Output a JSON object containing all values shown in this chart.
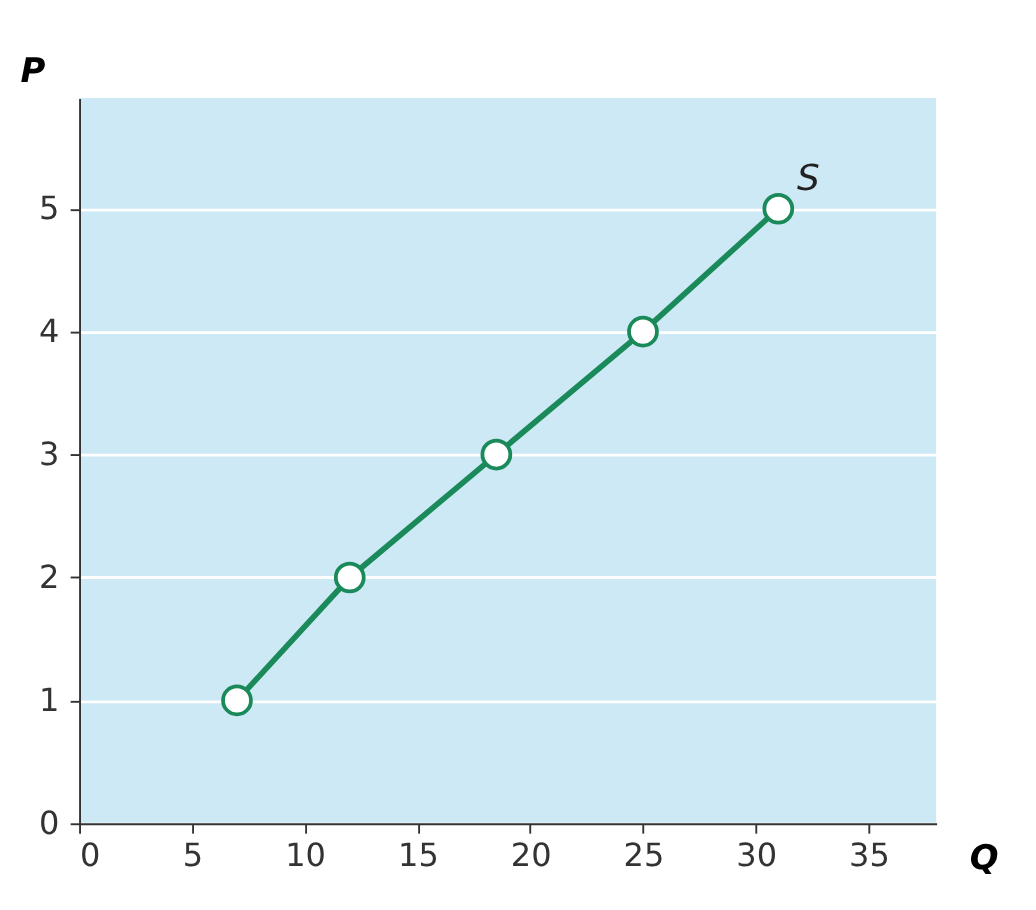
{
  "chart_data": {
    "type": "line",
    "xlabel": "Q",
    "ylabel": "P",
    "x": [
      7,
      12,
      18.5,
      25,
      31
    ],
    "series": [
      {
        "color": "#1a8a5a",
        "values": [
          1,
          2,
          3,
          4,
          5
        ]
      }
    ],
    "xlim": [
      0,
      38
    ],
    "ylim": [
      0,
      5.9
    ],
    "xticks": [
      0,
      5,
      10,
      15,
      20,
      25,
      30,
      35
    ],
    "yticks": [
      0,
      1,
      2,
      3,
      4,
      5
    ],
    "grid": "y",
    "marker": "circle",
    "line_style": "solid",
    "annotations": [
      {
        "text": "S",
        "x": 31,
        "y": 5
      }
    ]
  }
}
